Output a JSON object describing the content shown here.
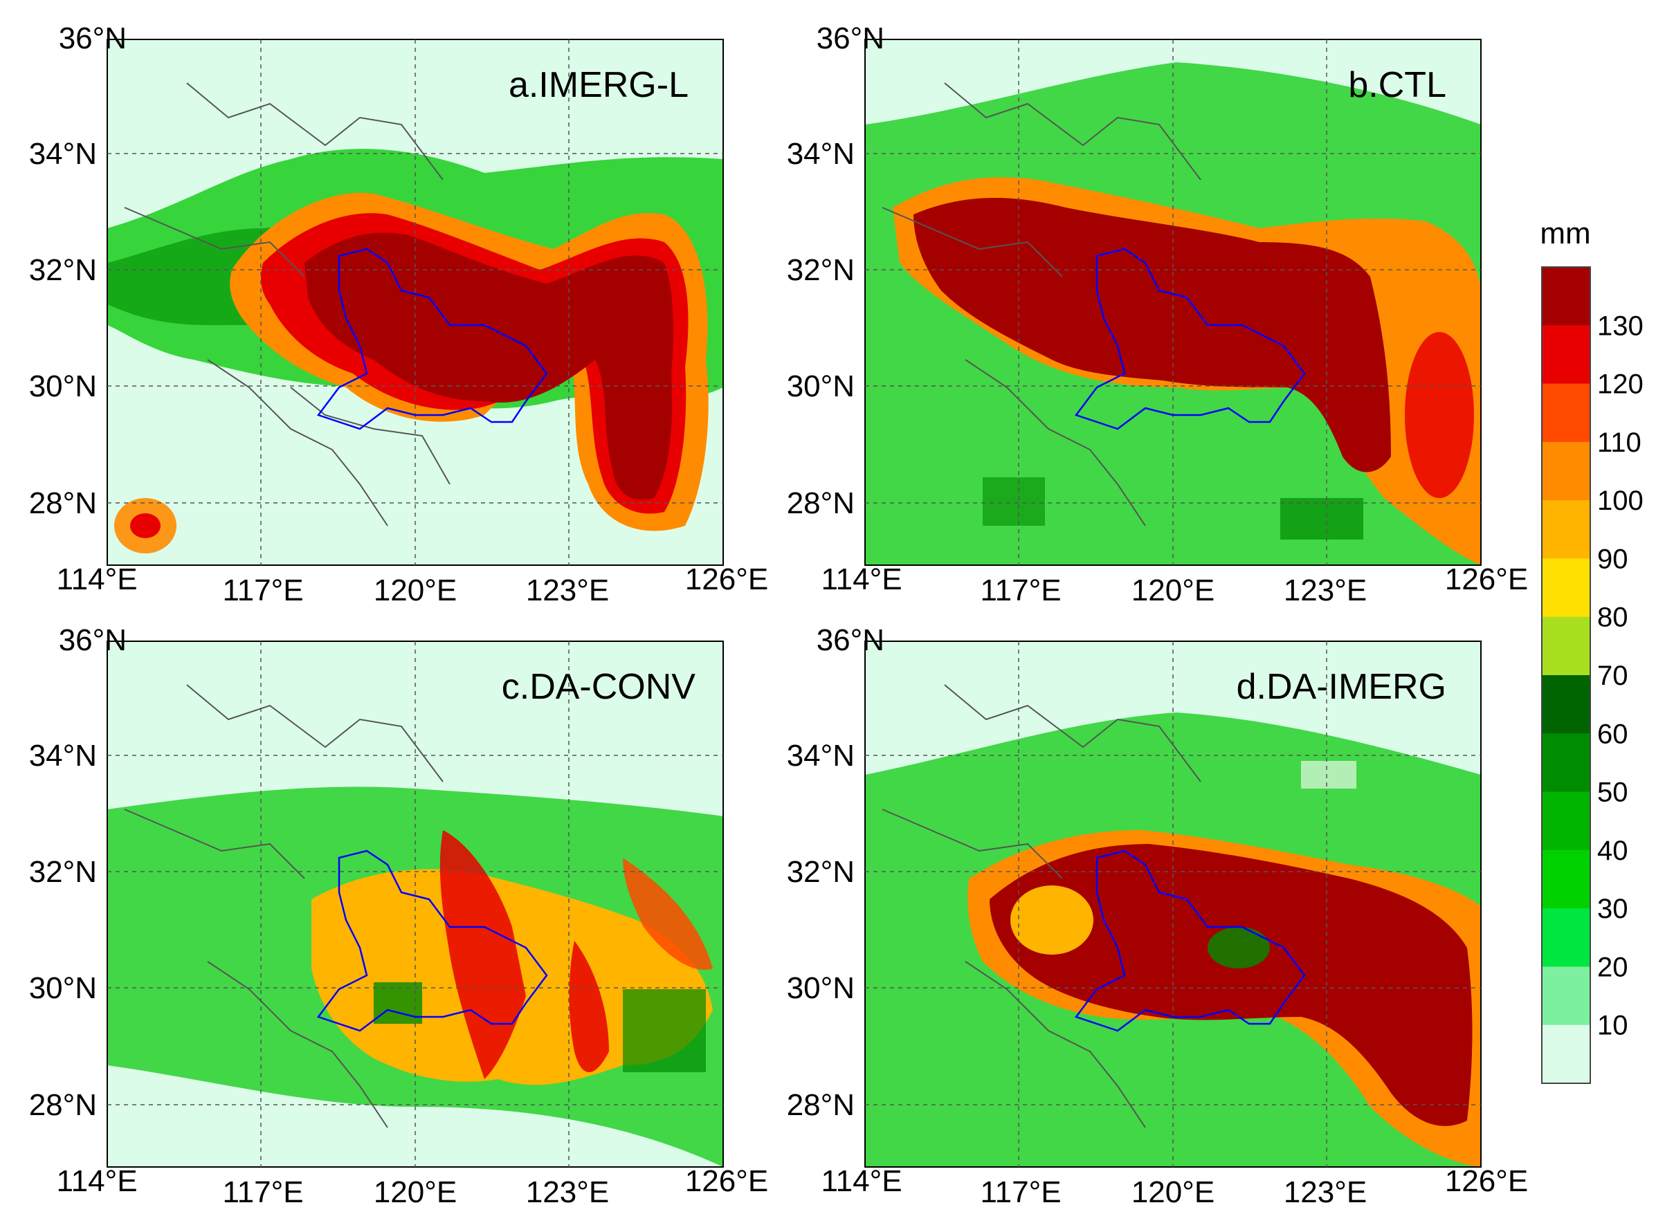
{
  "panels": [
    {
      "id": "a",
      "title": "a.IMERG-L"
    },
    {
      "id": "b",
      "title": "b.CTL"
    },
    {
      "id": "c",
      "title": "c.DA-CONV"
    },
    {
      "id": "d",
      "title": "d.DA-IMERG"
    }
  ],
  "axes": {
    "lat_labels": [
      "36°N",
      "34°N",
      "32°N",
      "30°N",
      "28°N"
    ],
    "lon_labels": [
      "114°E",
      "117°E",
      "120°E",
      "123°E",
      "126°E"
    ],
    "lat_range": [
      27,
      36
    ],
    "lon_range": [
      114,
      126
    ]
  },
  "colorbar": {
    "unit": "mm",
    "tick_labels": [
      "130",
      "120",
      "110",
      "100",
      "90",
      "80",
      "70",
      "60",
      "50",
      "40",
      "30",
      "20",
      "10"
    ],
    "colors": [
      "#a50000",
      "#e80000",
      "#ff4a00",
      "#ff8c00",
      "#ffb400",
      "#ffe000",
      "#a8e020",
      "#006400",
      "#008c00",
      "#00b400",
      "#00d200",
      "#00e640",
      "#7df0a0",
      "#dcfcea"
    ]
  },
  "map_colors": {
    "background": "#dcfcea",
    "boundary": "#555555",
    "region_outline": "#0000ff",
    "grid": "#555555"
  }
}
